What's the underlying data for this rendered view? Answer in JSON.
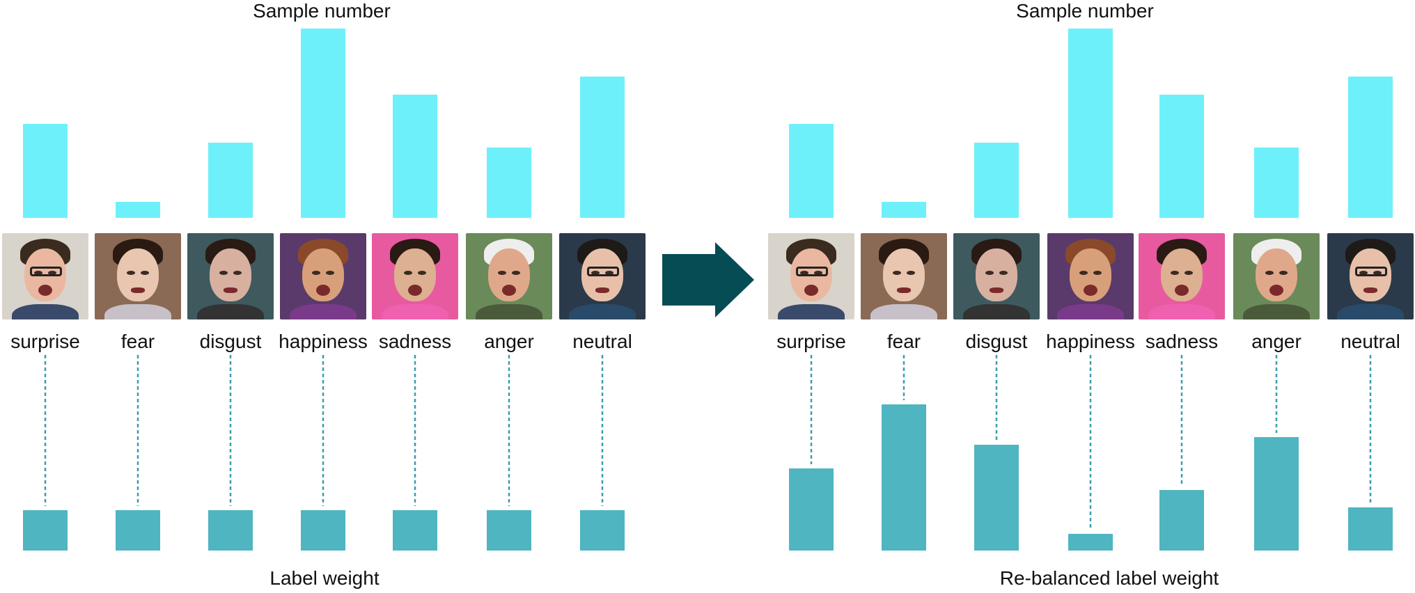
{
  "colors": {
    "sample_bar": "#6ef0fb",
    "weight_bar": "#4fb5c1",
    "connector": "#3a9fad",
    "arrow": "#064c55"
  },
  "panels": [
    {
      "top_title": "Sample number",
      "bottom_title": "Label weight",
      "emotions": [
        "surprise",
        "fear",
        "disgust",
        "happiness",
        "sadness",
        "anger",
        "neutral"
      ]
    },
    {
      "top_title": "Sample number",
      "bottom_title": "Re-balanced label weight",
      "emotions": [
        "surprise",
        "fear",
        "disgust",
        "happiness",
        "sadness",
        "anger",
        "neutral"
      ]
    }
  ],
  "chart_data": [
    {
      "type": "bar",
      "title": "Sample number",
      "categories": [
        "surprise",
        "fear",
        "disgust",
        "happiness",
        "sadness",
        "anger",
        "neutral"
      ],
      "values": [
        135,
        23,
        108,
        272,
        177,
        101,
        203
      ],
      "ylim": [
        0,
        272
      ]
    },
    {
      "type": "bar",
      "title": "Label weight",
      "categories": [
        "surprise",
        "fear",
        "disgust",
        "happiness",
        "sadness",
        "anger",
        "neutral"
      ],
      "values": [
        58,
        58,
        58,
        58,
        58,
        58,
        58
      ],
      "ylim": [
        0,
        210
      ]
    },
    {
      "type": "bar",
      "title": "Sample number",
      "categories": [
        "surprise",
        "fear",
        "disgust",
        "happiness",
        "sadness",
        "anger",
        "neutral"
      ],
      "values": [
        135,
        23,
        108,
        272,
        177,
        101,
        203
      ],
      "ylim": [
        0,
        272
      ]
    },
    {
      "type": "bar",
      "title": "Re-balanced label weight",
      "categories": [
        "surprise",
        "fear",
        "disgust",
        "happiness",
        "sadness",
        "anger",
        "neutral"
      ],
      "values": [
        118,
        210,
        152,
        24,
        87,
        163,
        62
      ],
      "ylim": [
        0,
        210
      ]
    }
  ]
}
